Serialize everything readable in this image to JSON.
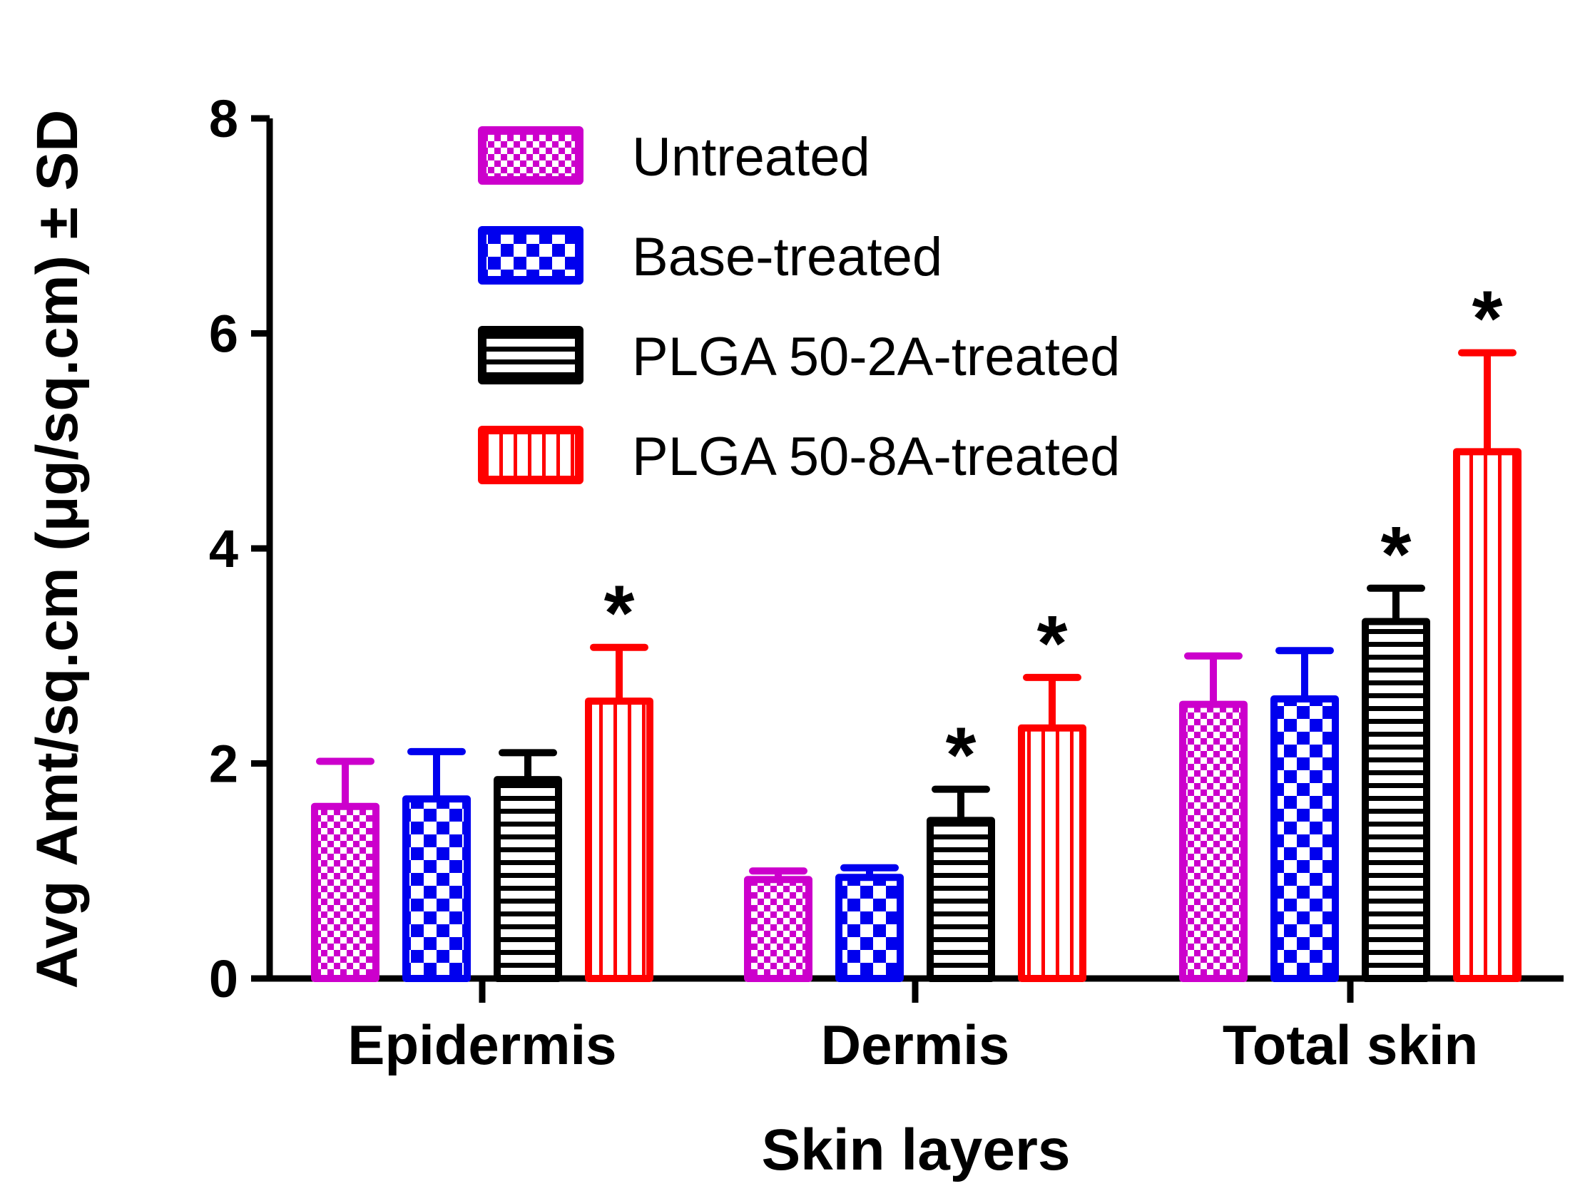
{
  "chart_data": {
    "type": "bar",
    "title": "",
    "xlabel": "Skin layers",
    "ylabel": "Avg Amt/sq.cm (μg/sq.cm) ± SD",
    "ylim": [
      0,
      8
    ],
    "yticks": [
      "0",
      "2",
      "4",
      "6",
      "8"
    ],
    "categories": [
      "Epidermis",
      "Dermis",
      "Total skin"
    ],
    "legend_position": "top-center",
    "series": [
      {
        "name": "Untreated",
        "color": "#cc00cc",
        "pattern": "fine-checker",
        "values": [
          1.6,
          0.92,
          2.55
        ],
        "sd": [
          0.42,
          0.08,
          0.45
        ],
        "significant": [
          false,
          false,
          false
        ]
      },
      {
        "name": "Base-treated",
        "color": "#0000ee",
        "pattern": "large-checker",
        "values": [
          1.67,
          0.94,
          2.6
        ],
        "sd": [
          0.44,
          0.09,
          0.45
        ],
        "significant": [
          false,
          false,
          false
        ]
      },
      {
        "name": "PLGA 50-2A-treated",
        "color": "#000000",
        "pattern": "horizontal-lines",
        "values": [
          1.85,
          1.47,
          3.32
        ],
        "sd": [
          0.25,
          0.29,
          0.31
        ],
        "significant": [
          false,
          true,
          true
        ]
      },
      {
        "name": "PLGA 50-8A-treated",
        "color": "#ff0000",
        "pattern": "vertical-lines",
        "values": [
          2.58,
          2.33,
          4.9
        ],
        "sd": [
          0.5,
          0.47,
          0.92
        ],
        "significant": [
          true,
          true,
          true
        ]
      }
    ],
    "significance_marker": "*"
  }
}
